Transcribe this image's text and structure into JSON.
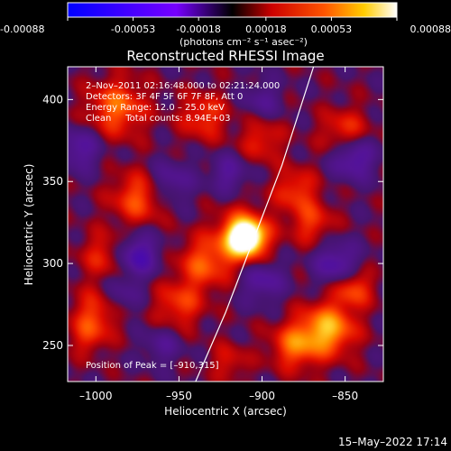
{
  "chart_data": {
    "type": "heatmap",
    "title": "Reconstructed RHESSI Image",
    "xlabel": "Heliocentric X (arcsec)",
    "ylabel": "Heliocentric Y (arcsec)",
    "x_ticks": [
      -1000,
      -950,
      -900,
      -850
    ],
    "y_ticks": [
      250,
      300,
      350,
      400
    ],
    "xlim": [
      -1017,
      -827
    ],
    "ylim": [
      228,
      420
    ],
    "colorbar": {
      "ticks": [
        "-0.00088",
        "-0.00053",
        "-0.00018",
        "0.00018",
        "0.00053",
        "0.00088"
      ],
      "range": [
        -0.00088,
        0.00088
      ],
      "unit_label": "(photons cm⁻² s⁻¹ asec⁻²)"
    },
    "annotations": [
      "2–Nov–2011 02:16:48.000 to 02:21:24.000",
      "Detectors: 3F 4F 5F 6F 7F 8F, Att 0",
      "Energy Range: 12.0 – 25.0 keV",
      "Clean     Total counts: 8.94E+03"
    ],
    "peak_label": "Position of Peak = [–910,315]",
    "peak": {
      "x": -910,
      "y": 315
    },
    "limb": [
      [
        -940,
        228
      ],
      [
        -922,
        270
      ],
      [
        -905,
        315
      ],
      [
        -888,
        360
      ],
      [
        -869,
        420
      ]
    ],
    "blobs": [
      {
        "x": -910,
        "y": 316,
        "v": 0.00088,
        "s": 6
      },
      {
        "x": -911,
        "y": 316,
        "v": 0.0006,
        "s": 11
      },
      {
        "x": -987,
        "y": 395,
        "v": 0.0004,
        "s": 12
      },
      {
        "x": -975,
        "y": 340,
        "v": 0.00035,
        "s": 11
      },
      {
        "x": -995,
        "y": 305,
        "v": 0.00025,
        "s": 10
      },
      {
        "x": -935,
        "y": 390,
        "v": 0.0003,
        "s": 10
      },
      {
        "x": -900,
        "y": 375,
        "v": 0.00025,
        "s": 9
      },
      {
        "x": -880,
        "y": 345,
        "v": 0.0003,
        "s": 9
      },
      {
        "x": -870,
        "y": 325,
        "v": 0.00028,
        "s": 9
      },
      {
        "x": -850,
        "y": 380,
        "v": 0.0003,
        "s": 10
      },
      {
        "x": -935,
        "y": 300,
        "v": 0.00035,
        "s": 11
      },
      {
        "x": -950,
        "y": 275,
        "v": 0.0003,
        "s": 10
      },
      {
        "x": -1000,
        "y": 270,
        "v": 0.0003,
        "s": 10
      },
      {
        "x": -1005,
        "y": 255,
        "v": 0.0002,
        "s": 8
      },
      {
        "x": -860,
        "y": 260,
        "v": 0.00055,
        "s": 11
      },
      {
        "x": -880,
        "y": 250,
        "v": 0.0004,
        "s": 10
      },
      {
        "x": -845,
        "y": 285,
        "v": 0.00035,
        "s": 8
      },
      {
        "x": -920,
        "y": 240,
        "v": 0.0002,
        "s": 8
      },
      {
        "x": -975,
        "y": 305,
        "v": -0.0004,
        "s": 9
      },
      {
        "x": -845,
        "y": 365,
        "v": -0.0004,
        "s": 9
      },
      {
        "x": -955,
        "y": 350,
        "v": -0.00025,
        "s": 9
      },
      {
        "x": -900,
        "y": 290,
        "v": -0.0003,
        "s": 9
      },
      {
        "x": -855,
        "y": 300,
        "v": -0.00035,
        "s": 9
      },
      {
        "x": -1010,
        "y": 370,
        "v": -0.0003,
        "s": 9
      },
      {
        "x": -920,
        "y": 355,
        "v": -0.00025,
        "s": 8
      },
      {
        "x": -960,
        "y": 250,
        "v": -0.0002,
        "s": 8
      },
      {
        "x": -985,
        "y": 280,
        "v": -0.0002,
        "s": 8
      },
      {
        "x": -900,
        "y": 400,
        "v": -0.0002,
        "s": 8
      }
    ]
  },
  "footer": {
    "timestamp": "15–May–2022 17:14"
  }
}
